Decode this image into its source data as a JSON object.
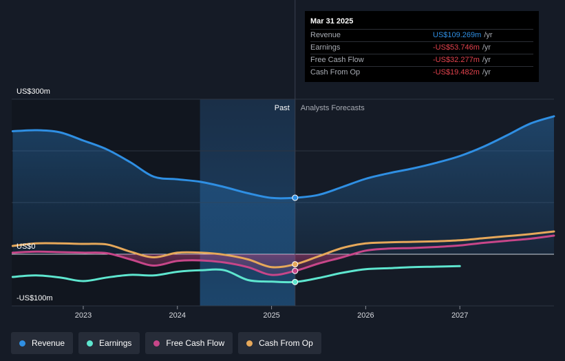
{
  "tooltip": {
    "date": "Mar 31 2025",
    "rows": [
      {
        "label": "Revenue",
        "value": "US$109.269m",
        "unit": "/yr"
      },
      {
        "label": "Earnings",
        "value": "-US$53.746m",
        "unit": "/yr"
      },
      {
        "label": "Free Cash Flow",
        "value": "-US$32.277m",
        "unit": "/yr"
      },
      {
        "label": "Cash From Op",
        "value": "-US$19.482m",
        "unit": "/yr"
      }
    ]
  },
  "legend": [
    {
      "label": "Revenue",
      "color": "#2f8fe3"
    },
    {
      "label": "Earnings",
      "color": "#5ee6cf"
    },
    {
      "label": "Free Cash Flow",
      "color": "#c74689"
    },
    {
      "label": "Cash From Op",
      "color": "#e6a85a"
    }
  ],
  "chart_data": {
    "type": "line",
    "past_label": "Past",
    "forecast_label": "Analysts Forecasts",
    "y_tick_labels": [
      "US$300m",
      "US$0",
      "-US$100m"
    ],
    "x_tick_labels": [
      "2023",
      "2024",
      "2025",
      "2026",
      "2027"
    ],
    "ylim": [
      -100,
      300
    ],
    "xlim": [
      2022.24,
      2028.0
    ],
    "divider_x": 2025.25,
    "highlight_x": [
      2024.24,
      2025.25
    ],
    "grid": true,
    "series": [
      {
        "name": "Revenue",
        "color": "#2f8fe3",
        "x": [
          2022.25,
          2022.5,
          2022.75,
          2023.0,
          2023.25,
          2023.5,
          2023.75,
          2024.0,
          2024.25,
          2024.5,
          2024.75,
          2025.0,
          2025.25,
          2025.5,
          2025.75,
          2026.0,
          2026.25,
          2026.5,
          2026.75,
          2027.0,
          2027.25,
          2027.5,
          2027.75,
          2028.0
        ],
        "values": [
          238,
          240,
          236,
          220,
          203,
          178,
          150,
          145,
          140,
          130,
          118,
          109,
          109.27,
          115,
          130,
          146,
          157,
          166,
          177,
          190,
          208,
          230,
          253,
          267
        ]
      },
      {
        "name": "Earnings",
        "color": "#5ee6cf",
        "x": [
          2022.25,
          2022.5,
          2022.75,
          2023.0,
          2023.25,
          2023.5,
          2023.75,
          2024.0,
          2024.25,
          2024.5,
          2024.75,
          2025.0,
          2025.25,
          2025.5,
          2025.75,
          2026.0,
          2026.25,
          2026.5,
          2026.75,
          2027.0
        ],
        "values": [
          -44,
          -41,
          -45,
          -52,
          -45,
          -40,
          -41,
          -34,
          -31,
          -31,
          -50,
          -53,
          -53.75,
          -46,
          -36,
          -29,
          -27,
          -25,
          -24,
          -23
        ]
      },
      {
        "name": "Free Cash Flow",
        "color": "#c74689",
        "x": [
          2022.25,
          2022.5,
          2022.75,
          2023.0,
          2023.25,
          2023.5,
          2023.75,
          2024.0,
          2024.25,
          2024.5,
          2024.75,
          2025.0,
          2025.25,
          2025.5,
          2025.75,
          2026.0,
          2026.25,
          2026.5,
          2026.75,
          2027.0,
          2027.25,
          2027.5,
          2027.75,
          2028.0
        ],
        "values": [
          3,
          5,
          4,
          3,
          2,
          -10,
          -22,
          -13,
          -12,
          -16,
          -25,
          -40,
          -32.28,
          -18,
          -6,
          7,
          11,
          12,
          14,
          17,
          22,
          26,
          30,
          36
        ]
      },
      {
        "name": "Cash From Op",
        "color": "#e6a85a",
        "x": [
          2022.25,
          2022.5,
          2022.75,
          2023.0,
          2023.25,
          2023.5,
          2023.75,
          2024.0,
          2024.25,
          2024.5,
          2024.75,
          2025.0,
          2025.25,
          2025.5,
          2025.75,
          2026.0,
          2026.25,
          2026.5,
          2026.75,
          2027.0,
          2027.25,
          2027.5,
          2027.75,
          2028.0
        ],
        "values": [
          16,
          21,
          21,
          20,
          19,
          5,
          -6,
          3,
          3,
          -1,
          -10,
          -25,
          -19.48,
          -4,
          12,
          21,
          23,
          24,
          25,
          27,
          31,
          35,
          39,
          44
        ]
      }
    ]
  }
}
